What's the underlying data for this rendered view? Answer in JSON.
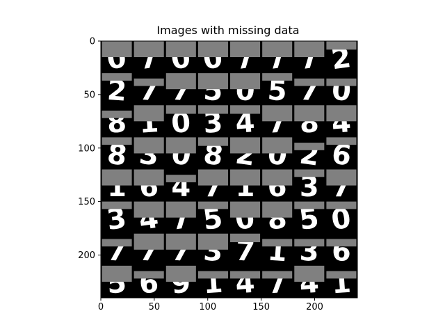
{
  "chart_data": {
    "type": "heatmap",
    "title": "Images with missing data",
    "xlabel": "",
    "ylabel": "",
    "image_size": [
      240,
      240
    ],
    "grid": {
      "rows": 8,
      "cols": 8,
      "cell_size": 30
    },
    "xlim": [
      0,
      240
    ],
    "ylim": [
      240,
      0
    ],
    "xticks": [
      {
        "value": 0,
        "label": "0"
      },
      {
        "value": 50,
        "label": "50"
      },
      {
        "value": 100,
        "label": "100"
      },
      {
        "value": 150,
        "label": "150"
      },
      {
        "value": 200,
        "label": "200"
      }
    ],
    "yticks": [
      {
        "value": 0,
        "label": "0"
      },
      {
        "value": 50,
        "label": "50"
      },
      {
        "value": 100,
        "label": "100"
      },
      {
        "value": 150,
        "label": "150"
      },
      {
        "value": 200,
        "label": "200"
      }
    ],
    "digits": [
      [
        "0",
        "7",
        "0",
        "0",
        "7",
        "7",
        "7",
        "2"
      ],
      [
        "2",
        "7",
        "7",
        "5",
        "0",
        "5",
        "7",
        "0"
      ],
      [
        "8",
        "1",
        "0",
        "3",
        "4",
        "7",
        "8",
        "4"
      ],
      [
        "8",
        "3",
        "0",
        "8",
        "2",
        "0",
        "2",
        "6"
      ],
      [
        "1",
        "6",
        "4",
        "7",
        "1",
        "6",
        "3",
        "7"
      ],
      [
        "3",
        "4",
        "7",
        "5",
        "0",
        "8",
        "5",
        "0"
      ],
      [
        "7",
        "7",
        "7",
        "3",
        "7",
        "1",
        "3",
        "6"
      ],
      [
        "5",
        "6",
        "9",
        "1",
        "4",
        "7",
        "4",
        "1"
      ]
    ],
    "missing_rows": [
      [
        [
          0,
          15
        ],
        [
          0,
          15
        ],
        [
          0,
          15
        ],
        [
          0,
          15
        ],
        [
          0,
          15
        ],
        [
          0,
          15
        ],
        [
          0,
          15
        ],
        [
          0,
          8
        ]
      ],
      [
        [
          0,
          7
        ],
        [
          5,
          12
        ],
        [
          0,
          15
        ],
        [
          0,
          15
        ],
        [
          0,
          15
        ],
        [
          0,
          7
        ],
        [
          5,
          12
        ],
        [
          5,
          12
        ]
      ],
      [
        [
          5,
          12
        ],
        [
          0,
          15
        ],
        [
          0,
          8
        ],
        [
          0,
          8
        ],
        [
          0,
          8
        ],
        [
          0,
          15
        ],
        [
          0,
          15
        ],
        [
          0,
          15
        ]
      ],
      [
        [
          0,
          7
        ],
        [
          0,
          15
        ],
        [
          0,
          15
        ],
        [
          0,
          8
        ],
        [
          0,
          15
        ],
        [
          0,
          15
        ],
        [
          5,
          12
        ],
        [
          0,
          7
        ]
      ],
      [
        [
          0,
          15
        ],
        [
          0,
          15
        ],
        [
          5,
          12
        ],
        [
          0,
          15
        ],
        [
          0,
          15
        ],
        [
          0,
          15
        ],
        [
          0,
          7
        ],
        [
          0,
          15
        ]
      ],
      [
        [
          0,
          7
        ],
        [
          0,
          15
        ],
        [
          0,
          15
        ],
        [
          0,
          7
        ],
        [
          0,
          15
        ],
        [
          0,
          15
        ],
        [
          0,
          7
        ],
        [
          0,
          7
        ]
      ],
      [
        [
          5,
          12
        ],
        [
          0,
          15
        ],
        [
          0,
          15
        ],
        [
          0,
          15
        ],
        [
          0,
          8
        ],
        [
          5,
          12
        ],
        [
          5,
          12
        ],
        [
          5,
          12
        ]
      ],
      [
        [
          0,
          15
        ],
        [
          5,
          12
        ],
        [
          0,
          15
        ],
        [
          5,
          12
        ],
        [
          5,
          12
        ],
        [
          5,
          12
        ],
        [
          0,
          15
        ],
        [
          5,
          12
        ]
      ]
    ],
    "colors": {
      "missing": "#808080",
      "ink": "#ffffff",
      "background": "#000000"
    }
  }
}
